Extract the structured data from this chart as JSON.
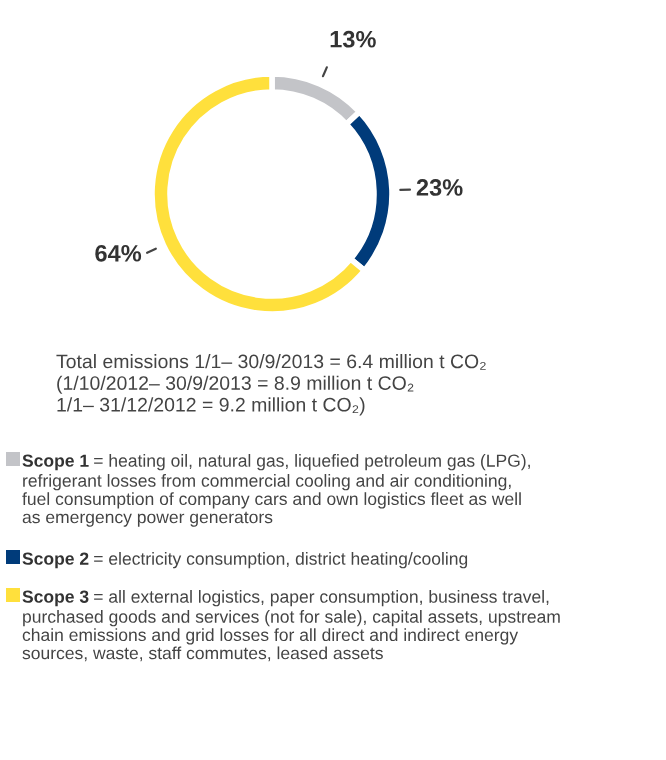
{
  "chart_data": {
    "type": "donut",
    "categories": [
      "Scope 1",
      "Scope 2",
      "Scope 3"
    ],
    "values": [
      13,
      23,
      64
    ],
    "colors": [
      "#c3c4c8",
      "#003b7a",
      "#ffe03c"
    ],
    "value_labels": [
      "13%",
      "23%",
      "64%"
    ],
    "legend": "bottom",
    "annotations": [
      "Total emissions 1/1– 30/9/2013 = 6.4 million t CO₂\n(1/10/2012– 30/9/2013 = 8.9 million t CO₂\n1/1– 31/12/2012 = 9.2 million t CO₂)",
      "= heating oil, natural gas, liquefied petroleum gas (LPG),\nrefrigerant losses from commercial cooling and air conditioning,\nfuel consumption of company cars and own logistics fleet as well\nas emergency power generators",
      "= electricity consumption, district heating/cooling",
      "= all external logistics, paper consumption, business travel,\npurchased goods and services (not for sale), capital assets, upstream\nchain emissions and grid losses for all direct and indirect energy\nsources, waste, staff commutes, leased assets"
    ]
  }
}
